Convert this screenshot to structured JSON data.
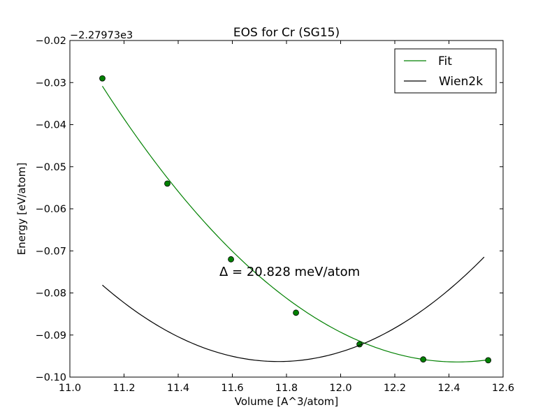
{
  "chart_data": {
    "type": "line",
    "title": "EOS for Cr (SG15)",
    "xlabel": "Volume [A^3/atom]",
    "ylabel": "Energy [eV/atom]",
    "y_offset_text": "−2.27973e3",
    "xlim": [
      11.0,
      12.6
    ],
    "ylim": [
      -0.1,
      -0.02
    ],
    "xticks": [
      11.0,
      11.2,
      11.4,
      11.6,
      11.8,
      12.0,
      12.2,
      12.4,
      12.6
    ],
    "xtick_labels": [
      "11.0",
      "11.2",
      "11.4",
      "11.6",
      "11.8",
      "12.0",
      "12.2",
      "12.4",
      "12.6"
    ],
    "yticks": [
      -0.02,
      -0.03,
      -0.04,
      -0.05,
      -0.06,
      -0.07,
      -0.08,
      -0.09,
      -0.1
    ],
    "ytick_labels": [
      "−0.02",
      "−0.03",
      "−0.04",
      "−0.05",
      "−0.06",
      "−0.07",
      "−0.08",
      "−0.09",
      "−0.10"
    ],
    "grid": false,
    "legend_position": "top-right",
    "annotation": "Δ = 20.828 meV/atom",
    "series": [
      {
        "name": "Fit",
        "color": "#008000",
        "marker": "circle",
        "fit_curve": {
          "vertex_x": 12.43,
          "vertex_y": -0.0964,
          "a": 0.0382,
          "x_range": [
            11.12,
            12.545
          ]
        },
        "points": [
          {
            "x": 11.12,
            "y": -0.029
          },
          {
            "x": 11.36,
            "y": -0.054
          },
          {
            "x": 11.595,
            "y": -0.072
          },
          {
            "x": 11.835,
            "y": -0.0847
          },
          {
            "x": 12.07,
            "y": -0.0922
          },
          {
            "x": 12.305,
            "y": -0.0958
          },
          {
            "x": 12.545,
            "y": -0.096
          }
        ]
      },
      {
        "name": "Wien2k",
        "color": "#000000",
        "marker": "none",
        "fit_curve": {
          "vertex_x": 11.77,
          "vertex_y": -0.0963,
          "a": 0.043,
          "x_range": [
            11.12,
            12.53
          ]
        }
      }
    ]
  }
}
